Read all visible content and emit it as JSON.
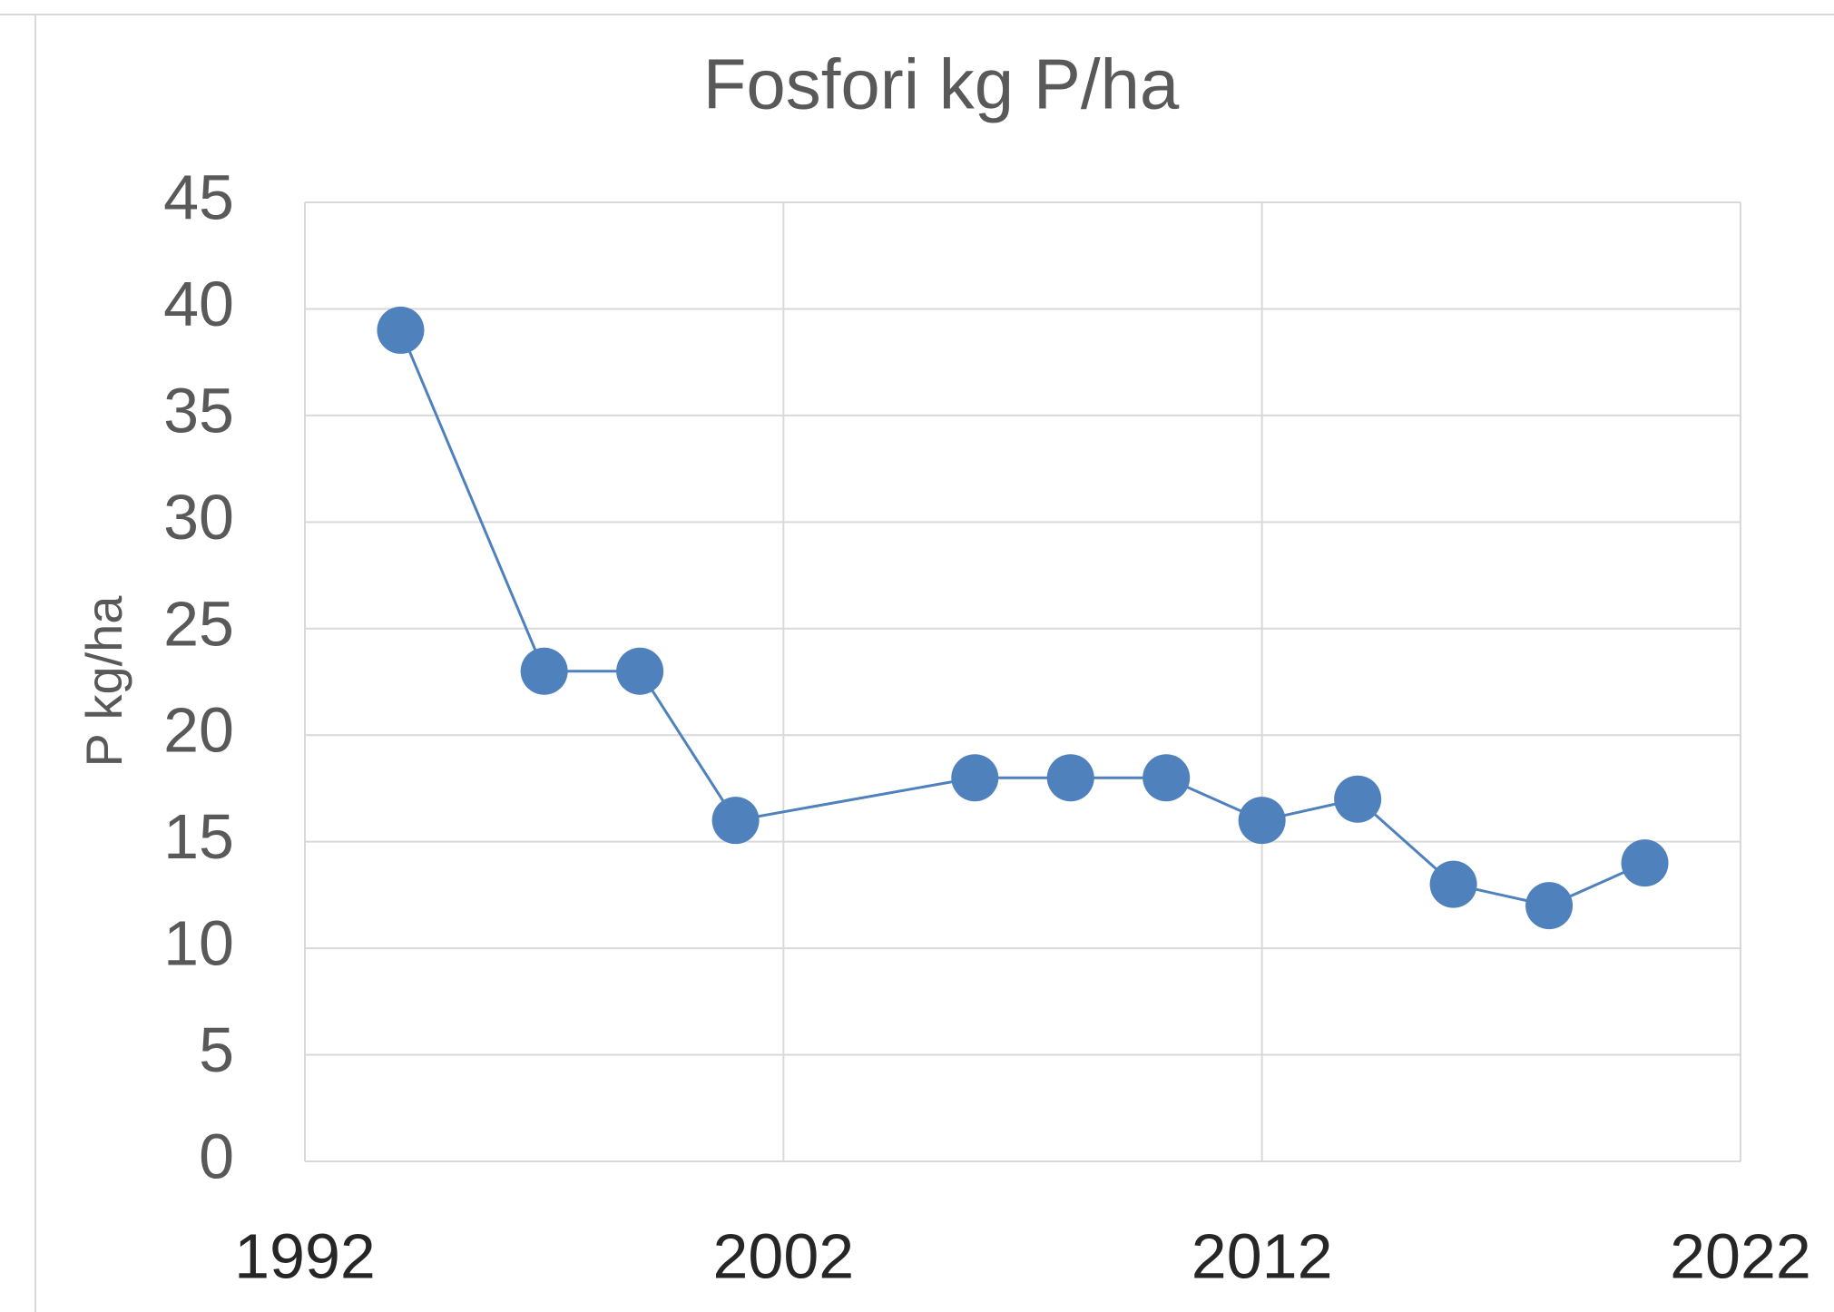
{
  "chart_data": {
    "type": "line",
    "title": "Fosfori kg P/ha",
    "y_label": "P kg/ha",
    "x": [
      1994,
      1997,
      1999,
      2001,
      2006,
      2008,
      2010,
      2012,
      2014,
      2016,
      2018,
      2020
    ],
    "series": [
      {
        "color": "#4f81bd",
        "values": [
          39,
          23,
          23,
          16,
          18,
          18,
          18,
          16,
          17,
          13,
          12,
          14
        ]
      }
    ],
    "xlim": [
      1992,
      2022
    ],
    "xticks": [
      1992,
      2002,
      2012,
      2022
    ],
    "ylim": [
      0,
      45
    ],
    "yticks": [
      0,
      5,
      10,
      15,
      20,
      25,
      30,
      35,
      40,
      45
    ],
    "grid": true
  }
}
